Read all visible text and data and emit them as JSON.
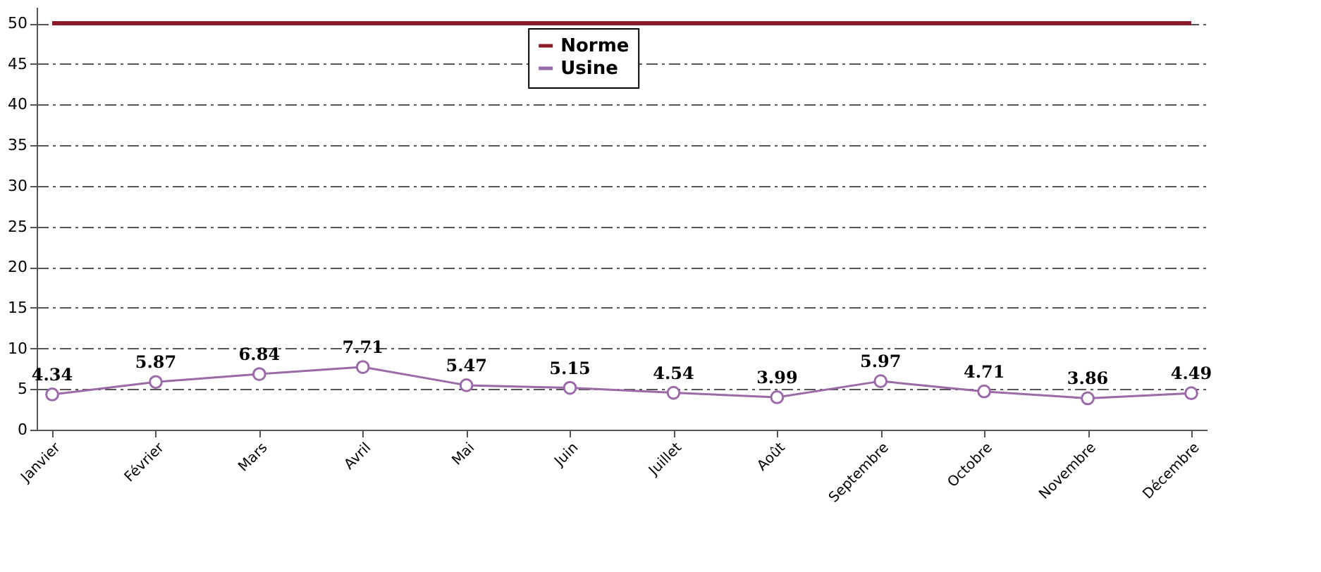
{
  "chart_data": {
    "type": "line",
    "categories": [
      "Janvier",
      "Février",
      "Mars",
      "Avril",
      "Mai",
      "Juin",
      "Juillet",
      "Août",
      "Septembre",
      "Octobre",
      "Novembre",
      "Décembre"
    ],
    "series": [
      {
        "name": "Norme",
        "color": "#8b1a2b",
        "marker": "none",
        "values": [
          50,
          50,
          50,
          50,
          50,
          50,
          50,
          50,
          50,
          50,
          50,
          50
        ]
      },
      {
        "name": "Usine",
        "color": "#9b6aa8",
        "marker": "circle",
        "values": [
          4.34,
          5.87,
          6.84,
          7.71,
          5.47,
          5.15,
          4.54,
          3.99,
          5.97,
          4.71,
          3.86,
          4.49
        ],
        "value_labels": [
          "4.34",
          "5.87",
          "6.84",
          "7.71",
          "5.47",
          "5.15",
          "4.54",
          "3.99",
          "5.97",
          "4.71",
          "3.86",
          "4.49"
        ]
      }
    ],
    "ylim": [
      0,
      52
    ],
    "yticks": [
      0,
      5,
      10,
      15,
      20,
      25,
      30,
      35,
      40,
      45,
      50
    ],
    "grid": "y",
    "line_style": "solid",
    "legend": "top"
  }
}
